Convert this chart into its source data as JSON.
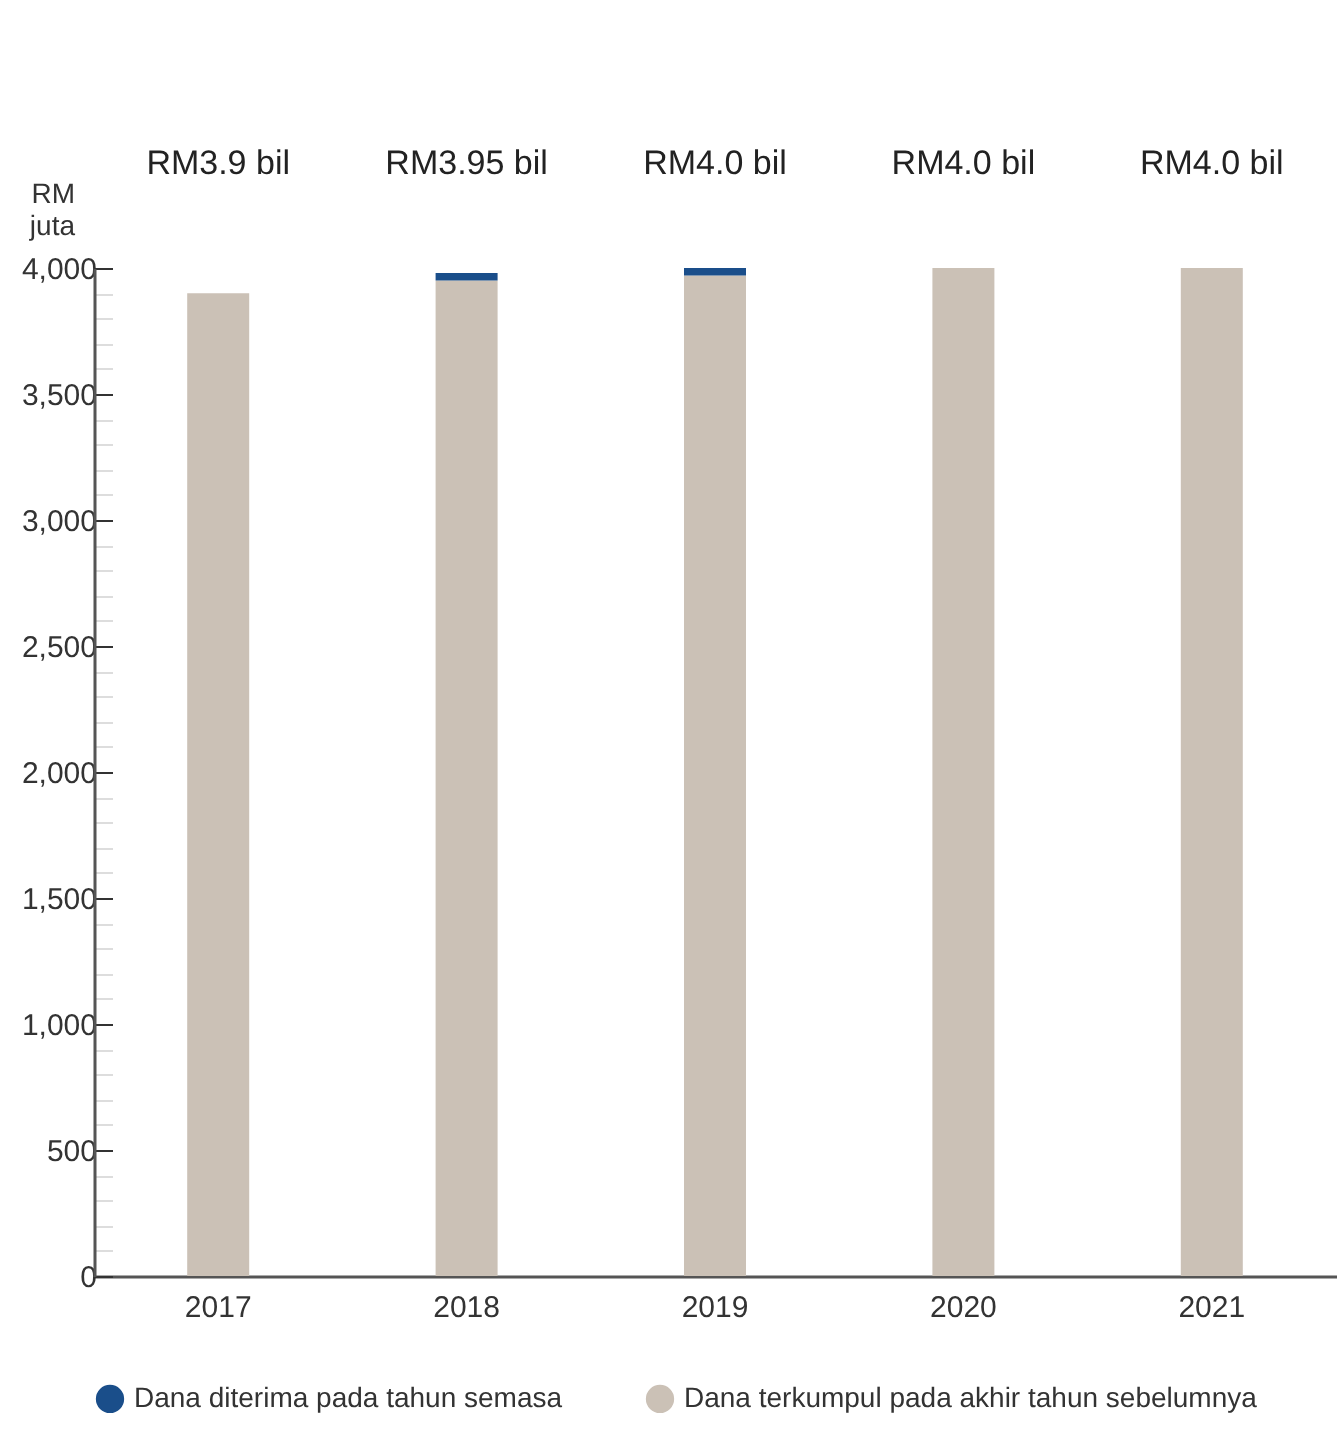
{
  "chart_data": {
    "type": "bar",
    "stacked": true,
    "ylabel": "RM juta",
    "categories": [
      "2017",
      "2018",
      "2019",
      "2020",
      "2021"
    ],
    "series": [
      {
        "name": "Dana terkumpul pada akhir tahun sebelumnya",
        "color": "#cbc1b6",
        "values": [
          3900,
          3950,
          3970,
          4000,
          4000
        ]
      },
      {
        "name": "Dana diterima pada tahun semasa",
        "color": "#1a4e8a",
        "values": [
          0,
          30,
          30,
          0,
          0
        ]
      }
    ],
    "annotations": [
      "RM3.9 bil",
      "RM3.95 bil",
      "RM4.0 bil",
      "RM4.0 bil",
      "RM4.0 bil"
    ],
    "ylim": [
      0,
      4000
    ],
    "yticks": [
      0,
      {
        "value": 100,
        "label": null
      },
      {
        "value": 200,
        "label": null
      },
      {
        "value": 300,
        "label": null
      },
      {
        "value": 400,
        "label": null
      },
      500,
      {
        "value": 600,
        "label": null
      },
      {
        "value": 700,
        "label": null
      },
      {
        "value": 800,
        "label": null
      },
      {
        "value": 900,
        "label": null
      },
      {
        "value": 1000,
        "label": "1,000"
      },
      {
        "value": 1100,
        "label": null
      },
      {
        "value": 1200,
        "label": null
      },
      {
        "value": 1300,
        "label": null
      },
      {
        "value": 1400,
        "label": null
      },
      {
        "value": 1500,
        "label": "1,500"
      },
      {
        "value": 1600,
        "label": null
      },
      {
        "value": 1700,
        "label": null
      },
      {
        "value": 1800,
        "label": null
      },
      {
        "value": 1900,
        "label": null
      },
      {
        "value": 2000,
        "label": "2,000"
      },
      {
        "value": 2100,
        "label": null
      },
      {
        "value": 2200,
        "label": null
      },
      {
        "value": 2300,
        "label": null
      },
      {
        "value": 2400,
        "label": null
      },
      {
        "value": 2500,
        "label": "2,500"
      },
      {
        "value": 2600,
        "label": null
      },
      {
        "value": 2700,
        "label": null
      },
      {
        "value": 2800,
        "label": null
      },
      {
        "value": 2900,
        "label": null
      },
      {
        "value": 3000,
        "label": "3,000"
      },
      {
        "value": 3100,
        "label": null
      },
      {
        "value": 3200,
        "label": null
      },
      {
        "value": 3300,
        "label": null
      },
      {
        "value": 3400,
        "label": null
      },
      {
        "value": 3500,
        "label": "3,500"
      },
      {
        "value": 3600,
        "label": null
      },
      {
        "value": 3700,
        "label": null
      },
      {
        "value": 3800,
        "label": null
      },
      {
        "value": 3900,
        "label": null
      },
      {
        "value": 4000,
        "label": "4,000"
      }
    ],
    "grid": false,
    "legend": "bottom"
  }
}
